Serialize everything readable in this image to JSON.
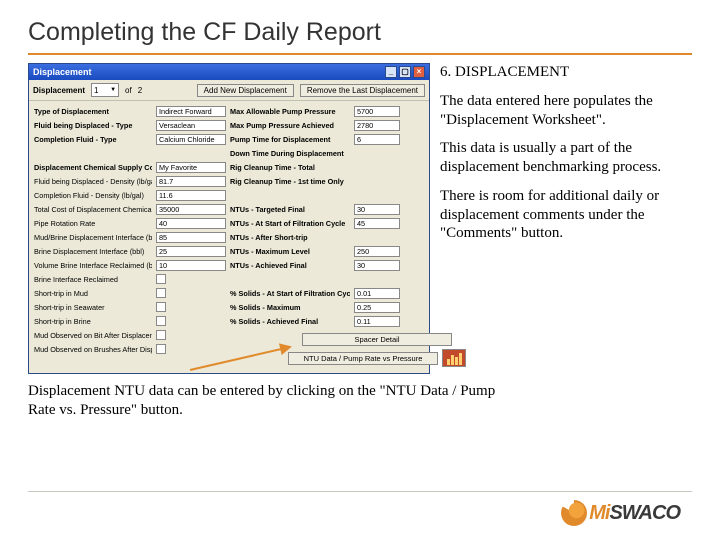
{
  "title": "Completing the CF Daily Report",
  "section_title": "6.  DISPLACEMENT",
  "paras": [
    "The data entered here populates the \"Displacement Worksheet\".",
    "This data is usually a part of the displacement benchmarking process.",
    "There is room for additional daily or displacement comments under the \"Comments\" button."
  ],
  "bottom_text": "Displacement NTU data can be entered by clicking on the \"NTU Data / Pump Rate vs. Pressure\" button.",
  "logo": {
    "mi": "Mi",
    "swaco": "SWACO"
  },
  "colors": {
    "accent": "#e08a2c",
    "titlebar_top": "#3a6ee0",
    "titlebar_bot": "#1a4abf",
    "form_bg": "#ece9d8"
  },
  "window": {
    "title": "Displacement",
    "toolbar_label": "Displacement",
    "toolbar_selected": "1",
    "toolbar_count": "2",
    "add_btn": "Add New Displacement",
    "remove_btn": "Remove the Last Displacement",
    "left_labels": [
      "Type of Displacement",
      "Fluid being Displaced - Type",
      "Completion Fluid - Type",
      "",
      "Displacement Chemical Supply Company",
      "Fluid being Displaced - Density (lb/gal)",
      "Completion Fluid - Density (lb/gal)",
      "Total Cost of Displacement Chemicals",
      "Pipe Rotation Rate",
      "Mud/Brine Displacement Interface (bbl)",
      "Brine Displacement Interface (bbl)",
      "Volume Brine Interface Reclaimed (bbl)",
      "Brine Interface Reclaimed",
      "Short-trip in Mud",
      "Short-trip in Seawater",
      "Short-trip in Brine",
      "Mud Observed on Bit After Displacement",
      "Mud Observed on Brushes After Displacement"
    ],
    "left_values": [
      "Indirect Forward",
      "Versaclean",
      "Calcium Chloride",
      "",
      "My Favorite",
      "81.7",
      "11.6",
      "35000",
      "40",
      "85",
      "25",
      "10",
      "chk",
      "chk",
      "chk",
      "chk",
      "chk",
      "chk"
    ],
    "right_labels": [
      "Max Allowable Pump Pressure",
      "Max Pump Pressure Achieved",
      "Pump Time for Displacement",
      "Down Time During Displacement",
      "Rig Cleanup Time - Total",
      "Rig Cleanup Time - 1st time Only",
      "",
      "NTUs - Targeted Final",
      "NTUs - At Start of Filtration Cycle",
      "NTUs - After Short-trip",
      "NTUs - Maximum Level",
      "NTUs - Achieved Final",
      "",
      "% Solids - At Start of Filtration Cycle",
      "% Solids - Maximum",
      "% Solids - Achieved Final"
    ],
    "right_values": [
      "5700",
      "2780",
      "6",
      "",
      "",
      "",
      "",
      "30",
      "45",
      "",
      "250",
      "30",
      "",
      "0.01",
      "0.25",
      "0.11"
    ],
    "spacer_btn": "Spacer Detail",
    "ntu_btn": "NTU Data / Pump Rate vs Pressure"
  }
}
